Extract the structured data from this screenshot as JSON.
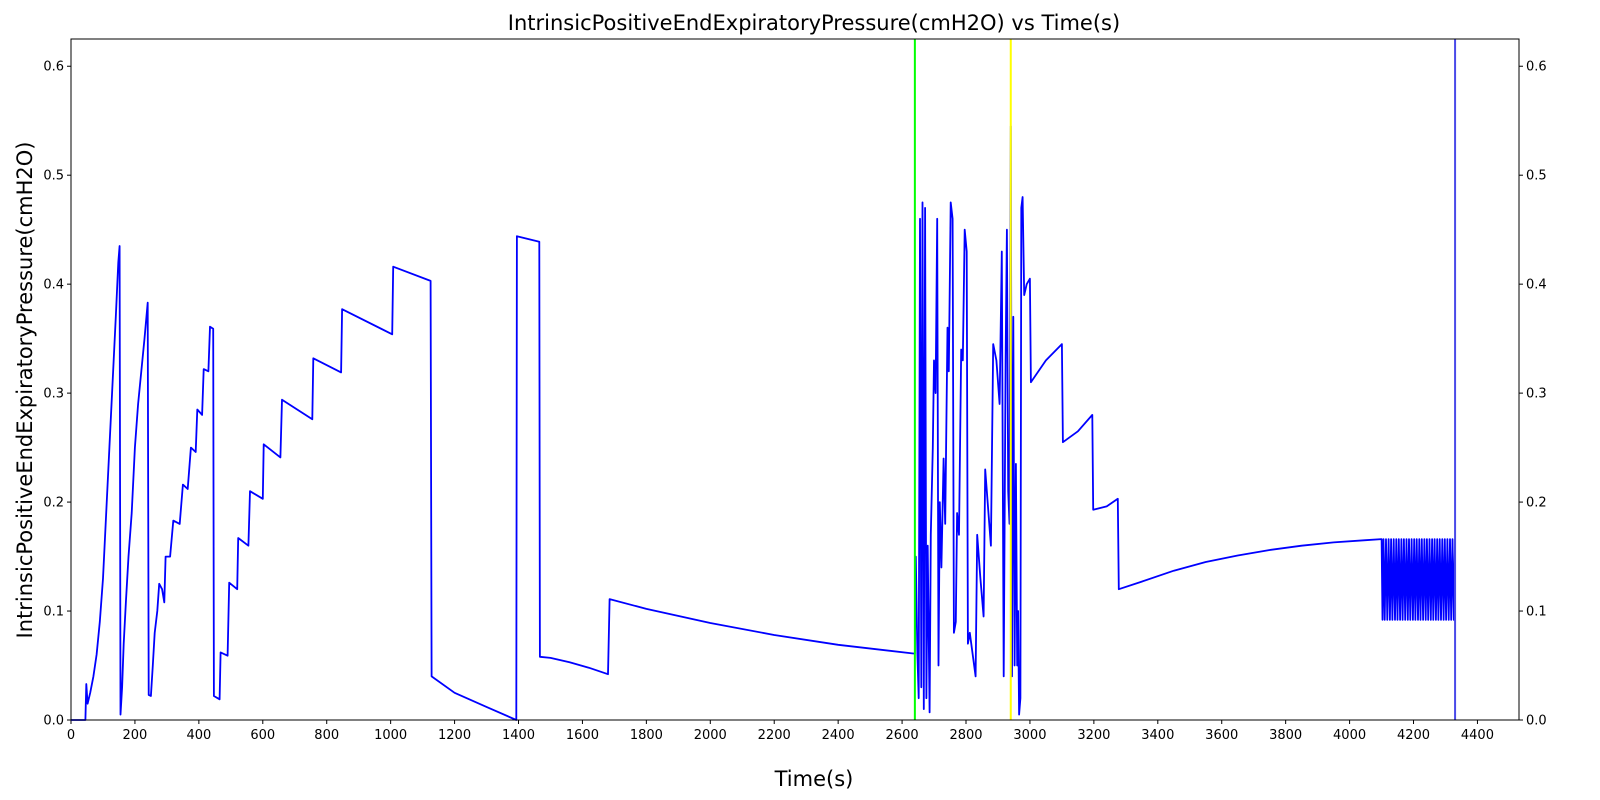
{
  "chart_data": {
    "type": "line",
    "title": "IntrinsicPositiveEndExpiratoryPressure(cmH2O) vs Time(s)",
    "xlabel": "Time(s)",
    "ylabel": "IntrinsicPositiveEndExpiratoryPressure(cmH2O)",
    "xlim": [
      0,
      4530
    ],
    "ylim": [
      0,
      0.625
    ],
    "x_ticks": [
      0,
      200,
      400,
      600,
      800,
      1000,
      1200,
      1400,
      1600,
      1800,
      2000,
      2200,
      2400,
      2600,
      2800,
      3000,
      3200,
      3400,
      3600,
      3800,
      4000,
      4200,
      4400
    ],
    "y_ticks": [
      0.0,
      0.1,
      0.2,
      0.3,
      0.4,
      0.5,
      0.6
    ],
    "y_tick_labels": [
      "0.0",
      "0.1",
      "0.2",
      "0.3",
      "0.4",
      "0.5",
      "0.6"
    ],
    "right_axis_ticks": true,
    "grid": false,
    "colors": {
      "series": "#0000ff",
      "event_1": "#00ff00",
      "event_2": "#ffff00",
      "event_3": "#4a4ae8"
    },
    "vertical_lines": [
      {
        "x": 2640,
        "color": "#00ff00"
      },
      {
        "x": 2940,
        "color": "#ffff00"
      },
      {
        "x": 4330,
        "color": "#4a4ae8"
      }
    ],
    "series": [
      {
        "color": "#0000ff",
        "points": [
          [
            0,
            0
          ],
          [
            45,
            0
          ],
          [
            48,
            0.033
          ],
          [
            52,
            0.015
          ],
          [
            60,
            0.025
          ],
          [
            70,
            0.04
          ],
          [
            80,
            0.06
          ],
          [
            90,
            0.09
          ],
          [
            100,
            0.13
          ],
          [
            110,
            0.19
          ],
          [
            120,
            0.25
          ],
          [
            130,
            0.31
          ],
          [
            140,
            0.37
          ],
          [
            148,
            0.42
          ],
          [
            152,
            0.435
          ],
          [
            155,
            0.005
          ],
          [
            160,
            0.03
          ],
          [
            165,
            0.07
          ],
          [
            172,
            0.11
          ],
          [
            180,
            0.15
          ],
          [
            190,
            0.19
          ],
          [
            200,
            0.25
          ],
          [
            210,
            0.29
          ],
          [
            220,
            0.32
          ],
          [
            230,
            0.35
          ],
          [
            240,
            0.383
          ],
          [
            243,
            0.023
          ],
          [
            250,
            0.022
          ],
          [
            256,
            0.05
          ],
          [
            262,
            0.08
          ],
          [
            270,
            0.1
          ],
          [
            276,
            0.125
          ],
          [
            285,
            0.12
          ],
          [
            292,
            0.108
          ],
          [
            296,
            0.15
          ],
          [
            310,
            0.15
          ],
          [
            320,
            0.183
          ],
          [
            340,
            0.18
          ],
          [
            350,
            0.216
          ],
          [
            365,
            0.212
          ],
          [
            375,
            0.25
          ],
          [
            390,
            0.246
          ],
          [
            395,
            0.285
          ],
          [
            410,
            0.28
          ],
          [
            415,
            0.322
          ],
          [
            430,
            0.32
          ],
          [
            435,
            0.361
          ],
          [
            445,
            0.359
          ],
          [
            447,
            0.022
          ],
          [
            465,
            0.019
          ],
          [
            468,
            0.062
          ],
          [
            490,
            0.059
          ],
          [
            495,
            0.126
          ],
          [
            520,
            0.12
          ],
          [
            523,
            0.167
          ],
          [
            555,
            0.16
          ],
          [
            560,
            0.21
          ],
          [
            600,
            0.203
          ],
          [
            603,
            0.253
          ],
          [
            655,
            0.241
          ],
          [
            660,
            0.294
          ],
          [
            755,
            0.276
          ],
          [
            758,
            0.332
          ],
          [
            845,
            0.319
          ],
          [
            848,
            0.377
          ],
          [
            1005,
            0.354
          ],
          [
            1008,
            0.416
          ],
          [
            1125,
            0.403
          ],
          [
            1128,
            0.04
          ],
          [
            1200,
            0.025
          ],
          [
            1300,
            0.012
          ],
          [
            1393,
            0.0
          ],
          [
            1395,
            0.444
          ],
          [
            1465,
            0.439
          ],
          [
            1467,
            0.058
          ],
          [
            1500,
            0.057
          ],
          [
            1560,
            0.053
          ],
          [
            1620,
            0.048
          ],
          [
            1680,
            0.042
          ],
          [
            1685,
            0.111
          ],
          [
            1800,
            0.102
          ],
          [
            2000,
            0.089
          ],
          [
            2200,
            0.078
          ],
          [
            2400,
            0.069
          ],
          [
            2635,
            0.061
          ],
          [
            2640,
            0.061
          ],
          [
            2643,
            0.15
          ],
          [
            2648,
            0.06
          ],
          [
            2652,
            0.02
          ],
          [
            2656,
            0.46
          ],
          [
            2660,
            0.03
          ],
          [
            2664,
            0.475
          ],
          [
            2668,
            0.01
          ],
          [
            2672,
            0.47
          ],
          [
            2676,
            0.02
          ],
          [
            2680,
            0.16
          ],
          [
            2686,
            0.007
          ],
          [
            2690,
            0.17
          ],
          [
            2696,
            0.25
          ],
          [
            2700,
            0.33
          ],
          [
            2705,
            0.3
          ],
          [
            2710,
            0.46
          ],
          [
            2714,
            0.05
          ],
          [
            2718,
            0.2
          ],
          [
            2723,
            0.14
          ],
          [
            2730,
            0.24
          ],
          [
            2735,
            0.18
          ],
          [
            2742,
            0.36
          ],
          [
            2746,
            0.32
          ],
          [
            2752,
            0.475
          ],
          [
            2758,
            0.46
          ],
          [
            2762,
            0.08
          ],
          [
            2768,
            0.09
          ],
          [
            2772,
            0.19
          ],
          [
            2778,
            0.17
          ],
          [
            2785,
            0.34
          ],
          [
            2790,
            0.33
          ],
          [
            2796,
            0.45
          ],
          [
            2802,
            0.43
          ],
          [
            2806,
            0.07
          ],
          [
            2812,
            0.08
          ],
          [
            2830,
            0.04
          ],
          [
            2835,
            0.17
          ],
          [
            2845,
            0.13
          ],
          [
            2855,
            0.095
          ],
          [
            2860,
            0.23
          ],
          [
            2878,
            0.16
          ],
          [
            2885,
            0.345
          ],
          [
            2895,
            0.33
          ],
          [
            2905,
            0.29
          ],
          [
            2912,
            0.43
          ],
          [
            2918,
            0.04
          ],
          [
            2924,
            0.33
          ],
          [
            2928,
            0.45
          ],
          [
            2932,
            0.21
          ],
          [
            2936,
            0.18
          ],
          [
            2940,
            0.545
          ],
          [
            2944,
            0.04
          ],
          [
            2948,
            0.37
          ],
          [
            2952,
            0.05
          ],
          [
            2956,
            0.235
          ],
          [
            2960,
            0.05
          ],
          [
            2963,
            0.1
          ],
          [
            2966,
            0.005
          ],
          [
            2970,
            0.02
          ],
          [
            2973,
            0.47
          ],
          [
            2977,
            0.48
          ],
          [
            2982,
            0.39
          ],
          [
            2990,
            0.4
          ],
          [
            3000,
            0.405
          ],
          [
            3003,
            0.31
          ],
          [
            3050,
            0.33
          ],
          [
            3100,
            0.345
          ],
          [
            3103,
            0.255
          ],
          [
            3150,
            0.265
          ],
          [
            3195,
            0.28
          ],
          [
            3198,
            0.193
          ],
          [
            3240,
            0.196
          ],
          [
            3275,
            0.203
          ],
          [
            3278,
            0.12
          ],
          [
            3350,
            0.127
          ],
          [
            3450,
            0.137
          ],
          [
            3550,
            0.145
          ],
          [
            3650,
            0.151
          ],
          [
            3750,
            0.156
          ],
          [
            3850,
            0.16
          ],
          [
            3950,
            0.163
          ],
          [
            4050,
            0.165
          ],
          [
            4100,
            0.166
          ],
          [
            4103,
            0.092
          ],
          [
            4106,
            0.166
          ],
          [
            4110,
            0.092
          ],
          [
            4114,
            0.166
          ],
          [
            4118,
            0.092
          ],
          [
            4122,
            0.166
          ],
          [
            4126,
            0.092
          ],
          [
            4130,
            0.166
          ],
          [
            4134,
            0.092
          ],
          [
            4138,
            0.166
          ],
          [
            4142,
            0.092
          ],
          [
            4146,
            0.166
          ],
          [
            4150,
            0.092
          ],
          [
            4154,
            0.166
          ],
          [
            4158,
            0.092
          ],
          [
            4162,
            0.166
          ],
          [
            4166,
            0.092
          ],
          [
            4170,
            0.166
          ],
          [
            4174,
            0.092
          ],
          [
            4178,
            0.166
          ],
          [
            4182,
            0.092
          ],
          [
            4186,
            0.166
          ],
          [
            4190,
            0.092
          ],
          [
            4194,
            0.166
          ],
          [
            4198,
            0.092
          ],
          [
            4202,
            0.166
          ],
          [
            4206,
            0.092
          ],
          [
            4210,
            0.166
          ],
          [
            4214,
            0.092
          ],
          [
            4218,
            0.166
          ],
          [
            4222,
            0.092
          ],
          [
            4226,
            0.166
          ],
          [
            4230,
            0.092
          ],
          [
            4234,
            0.166
          ],
          [
            4238,
            0.092
          ],
          [
            4242,
            0.166
          ],
          [
            4246,
            0.092
          ],
          [
            4250,
            0.166
          ],
          [
            4254,
            0.092
          ],
          [
            4258,
            0.166
          ],
          [
            4262,
            0.092
          ],
          [
            4266,
            0.166
          ],
          [
            4270,
            0.092
          ],
          [
            4274,
            0.166
          ],
          [
            4278,
            0.092
          ],
          [
            4282,
            0.166
          ],
          [
            4286,
            0.092
          ],
          [
            4290,
            0.166
          ],
          [
            4294,
            0.092
          ],
          [
            4298,
            0.166
          ],
          [
            4302,
            0.092
          ],
          [
            4306,
            0.166
          ],
          [
            4310,
            0.092
          ],
          [
            4314,
            0.166
          ],
          [
            4318,
            0.092
          ],
          [
            4322,
            0.166
          ],
          [
            4326,
            0.092
          ],
          [
            4330,
            0.166
          ]
        ]
      }
    ]
  }
}
